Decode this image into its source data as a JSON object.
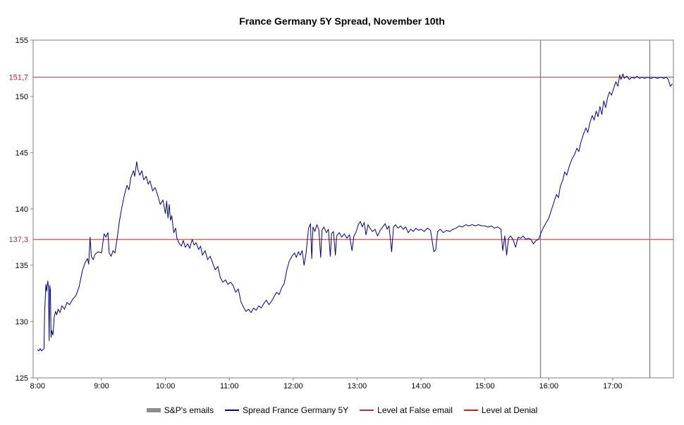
{
  "title": "France Germany 5Y Spread, November 10th",
  "chart_data": {
    "type": "line",
    "title": "France Germany 5Y Spread, November 10th",
    "xlabel": "",
    "ylabel": "",
    "x_unit": "time of day (decimal hours)",
    "xlim": [
      7.93,
      17.95
    ],
    "ylim": [
      125,
      155
    ],
    "grid": false,
    "legend_position": "bottom",
    "y_ticks": [
      125,
      130,
      135,
      140,
      145,
      150,
      155
    ],
    "x_ticks": [
      {
        "v": 8,
        "label": "8:00"
      },
      {
        "v": 9,
        "label": "9:00"
      },
      {
        "v": 10,
        "label": "10:00"
      },
      {
        "v": 11,
        "label": "11:00"
      },
      {
        "v": 12,
        "label": "12:00"
      },
      {
        "v": 13,
        "label": "13:00"
      },
      {
        "v": 14,
        "label": "14:00"
      },
      {
        "v": 15,
        "label": "15:00"
      },
      {
        "v": 16,
        "label": "16:00"
      },
      {
        "v": 17,
        "label": "17:00"
      }
    ],
    "levels": [
      {
        "name": "Level at False email",
        "value": 137.3,
        "axis_label": "137,3",
        "color": "#b03030"
      },
      {
        "name": "Level at Denial",
        "value": 151.7,
        "axis_label": "151,7",
        "color": "#cc2020"
      }
    ],
    "events": [
      {
        "name": "S&P's emails",
        "times": [
          15.87,
          17.58
        ],
        "color": "#808080"
      }
    ],
    "series": [
      {
        "name": "Spread France Germany 5Y",
        "color": "#000080",
        "points": [
          [
            8.0,
            127.5
          ],
          [
            8.02,
            127.4
          ],
          [
            8.04,
            127.6
          ],
          [
            8.06,
            127.4
          ],
          [
            8.08,
            127.5
          ],
          [
            8.1,
            127.6
          ],
          [
            8.11,
            130.8
          ],
          [
            8.13,
            133.3
          ],
          [
            8.14,
            132.7
          ],
          [
            8.16,
            133.6
          ],
          [
            8.17,
            133.0
          ],
          [
            8.18,
            128.3
          ],
          [
            8.19,
            133.2
          ],
          [
            8.2,
            132.8
          ],
          [
            8.21,
            128.6
          ],
          [
            8.22,
            129.2
          ],
          [
            8.24,
            128.8
          ],
          [
            8.26,
            130.4
          ],
          [
            8.28,
            130.9
          ],
          [
            8.3,
            130.6
          ],
          [
            8.32,
            131.1
          ],
          [
            8.35,
            130.8
          ],
          [
            8.38,
            131.4
          ],
          [
            8.42,
            131.1
          ],
          [
            8.46,
            131.7
          ],
          [
            8.5,
            131.5
          ],
          [
            8.55,
            132.0
          ],
          [
            8.6,
            132.3
          ],
          [
            8.65,
            133.1
          ],
          [
            8.7,
            134.5
          ],
          [
            8.74,
            135.2
          ],
          [
            8.78,
            135.6
          ],
          [
            8.8,
            135.1
          ],
          [
            8.82,
            137.5
          ],
          [
            8.84,
            135.8
          ],
          [
            8.87,
            135.5
          ],
          [
            8.9,
            136.0
          ],
          [
            8.95,
            136.2
          ],
          [
            9.0,
            136.1
          ],
          [
            9.04,
            137.8
          ],
          [
            9.07,
            137.5
          ],
          [
            9.1,
            137.9
          ],
          [
            9.12,
            136.1
          ],
          [
            9.15,
            135.8
          ],
          [
            9.18,
            136.3
          ],
          [
            9.21,
            136.1
          ],
          [
            9.25,
            137.6
          ],
          [
            9.28,
            138.9
          ],
          [
            9.32,
            140.2
          ],
          [
            9.36,
            141.3
          ],
          [
            9.4,
            142.1
          ],
          [
            9.43,
            141.7
          ],
          [
            9.46,
            142.8
          ],
          [
            9.5,
            143.4
          ],
          [
            9.52,
            142.9
          ],
          [
            9.55,
            144.2
          ],
          [
            9.57,
            143.5
          ],
          [
            9.6,
            143.0
          ],
          [
            9.63,
            143.4
          ],
          [
            9.66,
            142.6
          ],
          [
            9.7,
            142.9
          ],
          [
            9.73,
            142.2
          ],
          [
            9.76,
            142.5
          ],
          [
            9.8,
            141.6
          ],
          [
            9.84,
            141.9
          ],
          [
            9.88,
            141.2
          ],
          [
            9.92,
            140.4
          ],
          [
            9.96,
            140.8
          ],
          [
            10.0,
            139.6
          ],
          [
            10.02,
            140.7
          ],
          [
            10.04,
            139.2
          ],
          [
            10.06,
            140.4
          ],
          [
            10.08,
            139.0
          ],
          [
            10.1,
            139.4
          ],
          [
            10.13,
            137.9
          ],
          [
            10.16,
            138.3
          ],
          [
            10.18,
            137.4
          ],
          [
            10.21,
            137.0
          ],
          [
            10.25,
            136.7
          ],
          [
            10.28,
            137.2
          ],
          [
            10.31,
            136.6
          ],
          [
            10.35,
            136.9
          ],
          [
            10.38,
            136.5
          ],
          [
            10.42,
            137.3
          ],
          [
            10.45,
            136.8
          ],
          [
            10.48,
            137.0
          ],
          [
            10.52,
            136.4
          ],
          [
            10.55,
            136.7
          ],
          [
            10.58,
            135.9
          ],
          [
            10.62,
            136.3
          ],
          [
            10.66,
            135.5
          ],
          [
            10.7,
            135.8
          ],
          [
            10.74,
            135.2
          ],
          [
            10.78,
            134.6
          ],
          [
            10.82,
            134.9
          ],
          [
            10.86,
            133.9
          ],
          [
            10.9,
            133.5
          ],
          [
            10.94,
            133.7
          ],
          [
            10.98,
            133.3
          ],
          [
            11.02,
            133.5
          ],
          [
            11.06,
            133.2
          ],
          [
            11.1,
            132.6
          ],
          [
            11.14,
            132.9
          ],
          [
            11.18,
            131.8
          ],
          [
            11.22,
            131.3
          ],
          [
            11.26,
            130.9
          ],
          [
            11.3,
            131.1
          ],
          [
            11.34,
            130.8
          ],
          [
            11.38,
            131.2
          ],
          [
            11.42,
            131.0
          ],
          [
            11.46,
            131.4
          ],
          [
            11.5,
            131.2
          ],
          [
            11.54,
            131.6
          ],
          [
            11.58,
            131.9
          ],
          [
            11.62,
            131.5
          ],
          [
            11.66,
            131.8
          ],
          [
            11.7,
            132.2
          ],
          [
            11.74,
            132.6
          ],
          [
            11.78,
            132.4
          ],
          [
            11.82,
            133.0
          ],
          [
            11.86,
            133.4
          ],
          [
            11.9,
            134.6
          ],
          [
            11.94,
            135.4
          ],
          [
            11.98,
            135.8
          ],
          [
            12.02,
            136.1
          ],
          [
            12.05,
            135.7
          ],
          [
            12.08,
            136.2
          ],
          [
            12.11,
            135.9
          ],
          [
            12.14,
            136.3
          ],
          [
            12.17,
            135.0
          ],
          [
            12.2,
            136.0
          ],
          [
            12.24,
            138.3
          ],
          [
            12.27,
            138.7
          ],
          [
            12.29,
            135.6
          ],
          [
            12.31,
            138.4
          ],
          [
            12.34,
            138.0
          ],
          [
            12.37,
            138.6
          ],
          [
            12.4,
            138.2
          ],
          [
            12.43,
            135.7
          ],
          [
            12.45,
            138.1
          ],
          [
            12.48,
            138.4
          ],
          [
            12.52,
            137.9
          ],
          [
            12.55,
            138.2
          ],
          [
            12.58,
            135.8
          ],
          [
            12.6,
            137.8
          ],
          [
            12.63,
            138.0
          ],
          [
            12.66,
            135.9
          ],
          [
            12.68,
            137.6
          ],
          [
            12.72,
            137.9
          ],
          [
            12.76,
            137.5
          ],
          [
            12.8,
            137.8
          ],
          [
            12.84,
            137.4
          ],
          [
            12.88,
            137.7
          ],
          [
            12.92,
            136.3
          ],
          [
            12.95,
            137.6
          ],
          [
            12.98,
            137.9
          ],
          [
            13.02,
            138.6
          ],
          [
            13.05,
            138.9
          ],
          [
            13.08,
            138.4
          ],
          [
            13.11,
            138.8
          ],
          [
            13.14,
            137.7
          ],
          [
            13.17,
            138.6
          ],
          [
            13.2,
            138.3
          ],
          [
            13.24,
            138.0
          ],
          [
            13.28,
            138.2
          ],
          [
            13.32,
            137.6
          ],
          [
            13.36,
            138.1
          ],
          [
            13.4,
            138.4
          ],
          [
            13.44,
            138.7
          ],
          [
            13.47,
            138.2
          ],
          [
            13.5,
            138.5
          ],
          [
            13.54,
            136.2
          ],
          [
            13.57,
            138.4
          ],
          [
            13.6,
            138.6
          ],
          [
            13.64,
            138.3
          ],
          [
            13.68,
            138.5
          ],
          [
            13.72,
            138.2
          ],
          [
            13.76,
            138.4
          ],
          [
            13.8,
            137.9
          ],
          [
            13.84,
            138.2
          ],
          [
            13.88,
            138.0
          ],
          [
            13.92,
            138.3
          ],
          [
            13.96,
            138.1
          ],
          [
            14.0,
            138.2
          ],
          [
            14.05,
            138.0
          ],
          [
            14.1,
            138.3
          ],
          [
            14.15,
            138.1
          ],
          [
            14.2,
            136.2
          ],
          [
            14.23,
            136.4
          ],
          [
            14.26,
            138.0
          ],
          [
            14.3,
            138.2
          ],
          [
            14.35,
            137.9
          ],
          [
            14.4,
            138.1
          ],
          [
            14.45,
            138.0
          ],
          [
            14.5,
            138.2
          ],
          [
            14.55,
            138.3
          ],
          [
            14.6,
            138.5
          ],
          [
            14.65,
            138.4
          ],
          [
            14.7,
            138.6
          ],
          [
            14.75,
            138.5
          ],
          [
            14.8,
            138.6
          ],
          [
            14.85,
            138.5
          ],
          [
            14.9,
            138.6
          ],
          [
            14.95,
            138.5
          ],
          [
            15.0,
            138.5
          ],
          [
            15.05,
            138.4
          ],
          [
            15.1,
            138.5
          ],
          [
            15.15,
            138.3
          ],
          [
            15.2,
            138.4
          ],
          [
            15.25,
            138.2
          ],
          [
            15.28,
            136.3
          ],
          [
            15.31,
            137.6
          ],
          [
            15.34,
            135.9
          ],
          [
            15.37,
            137.4
          ],
          [
            15.4,
            137.6
          ],
          [
            15.44,
            137.3
          ],
          [
            15.48,
            136.6
          ],
          [
            15.52,
            137.5
          ],
          [
            15.56,
            137.4
          ],
          [
            15.6,
            137.6
          ],
          [
            15.64,
            137.3
          ],
          [
            15.68,
            137.4
          ],
          [
            15.72,
            137.3
          ],
          [
            15.76,
            136.9
          ],
          [
            15.8,
            137.2
          ],
          [
            15.84,
            137.3
          ],
          [
            15.88,
            137.9
          ],
          [
            15.92,
            138.4
          ],
          [
            15.96,
            138.8
          ],
          [
            16.0,
            139.2
          ],
          [
            16.04,
            139.9
          ],
          [
            16.08,
            140.6
          ],
          [
            16.12,
            141.3
          ],
          [
            16.15,
            141.0
          ],
          [
            16.18,
            142.0
          ],
          [
            16.22,
            142.6
          ],
          [
            16.25,
            143.3
          ],
          [
            16.28,
            143.0
          ],
          [
            16.32,
            143.8
          ],
          [
            16.36,
            144.4
          ],
          [
            16.4,
            144.8
          ],
          [
            16.44,
            145.4
          ],
          [
            16.47,
            145.1
          ],
          [
            16.5,
            145.9
          ],
          [
            16.54,
            146.6
          ],
          [
            16.58,
            147.2
          ],
          [
            16.61,
            146.8
          ],
          [
            16.64,
            147.6
          ],
          [
            16.68,
            148.3
          ],
          [
            16.71,
            147.9
          ],
          [
            16.74,
            148.7
          ],
          [
            16.77,
            148.2
          ],
          [
            16.8,
            149.1
          ],
          [
            16.83,
            148.4
          ],
          [
            16.86,
            149.6
          ],
          [
            16.89,
            149.0
          ],
          [
            16.92,
            149.9
          ],
          [
            16.95,
            150.4
          ],
          [
            16.98,
            150.1
          ],
          [
            17.02,
            150.8
          ],
          [
            17.05,
            151.3
          ],
          [
            17.08,
            150.9
          ],
          [
            17.11,
            151.9
          ],
          [
            17.13,
            151.5
          ],
          [
            17.16,
            152.0
          ],
          [
            17.18,
            151.6
          ],
          [
            17.22,
            151.8
          ],
          [
            17.26,
            151.5
          ],
          [
            17.3,
            151.7
          ],
          [
            17.34,
            151.6
          ],
          [
            17.38,
            151.8
          ],
          [
            17.42,
            151.6
          ],
          [
            17.46,
            151.7
          ],
          [
            17.5,
            151.6
          ],
          [
            17.55,
            151.7
          ],
          [
            17.6,
            151.6
          ],
          [
            17.65,
            151.7
          ],
          [
            17.7,
            151.6
          ],
          [
            17.75,
            151.7
          ],
          [
            17.8,
            151.6
          ],
          [
            17.84,
            151.7
          ],
          [
            17.87,
            151.5
          ],
          [
            17.9,
            150.9
          ],
          [
            17.93,
            151.1
          ]
        ]
      }
    ],
    "legend": [
      {
        "label": "S&P's emails",
        "swatch": "thick-bar",
        "color": "#8c8c8c"
      },
      {
        "label": "Spread France Germany 5Y",
        "swatch": "line",
        "color": "#000080"
      },
      {
        "label": "Level at False email",
        "swatch": "line",
        "color": "#b03030"
      },
      {
        "label": "Level at Denial",
        "swatch": "line",
        "color": "#cc2020"
      }
    ],
    "axis_color": "#808080",
    "tick_label_color": "#000000"
  }
}
